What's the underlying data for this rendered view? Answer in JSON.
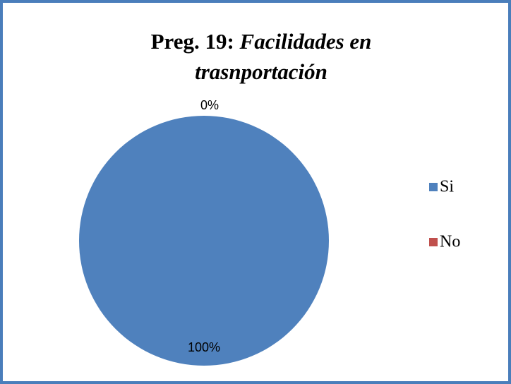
{
  "chart_data": {
    "type": "pie",
    "title": [
      "Preg. 19:",
      "Facilidades en",
      "trasnportación"
    ],
    "categories": [
      "Si",
      "No"
    ],
    "values": [
      100,
      0
    ],
    "value_labels": [
      "100%",
      "0%"
    ],
    "colors": [
      "#4f81bd",
      "#c0504d"
    ],
    "legend": "right"
  }
}
